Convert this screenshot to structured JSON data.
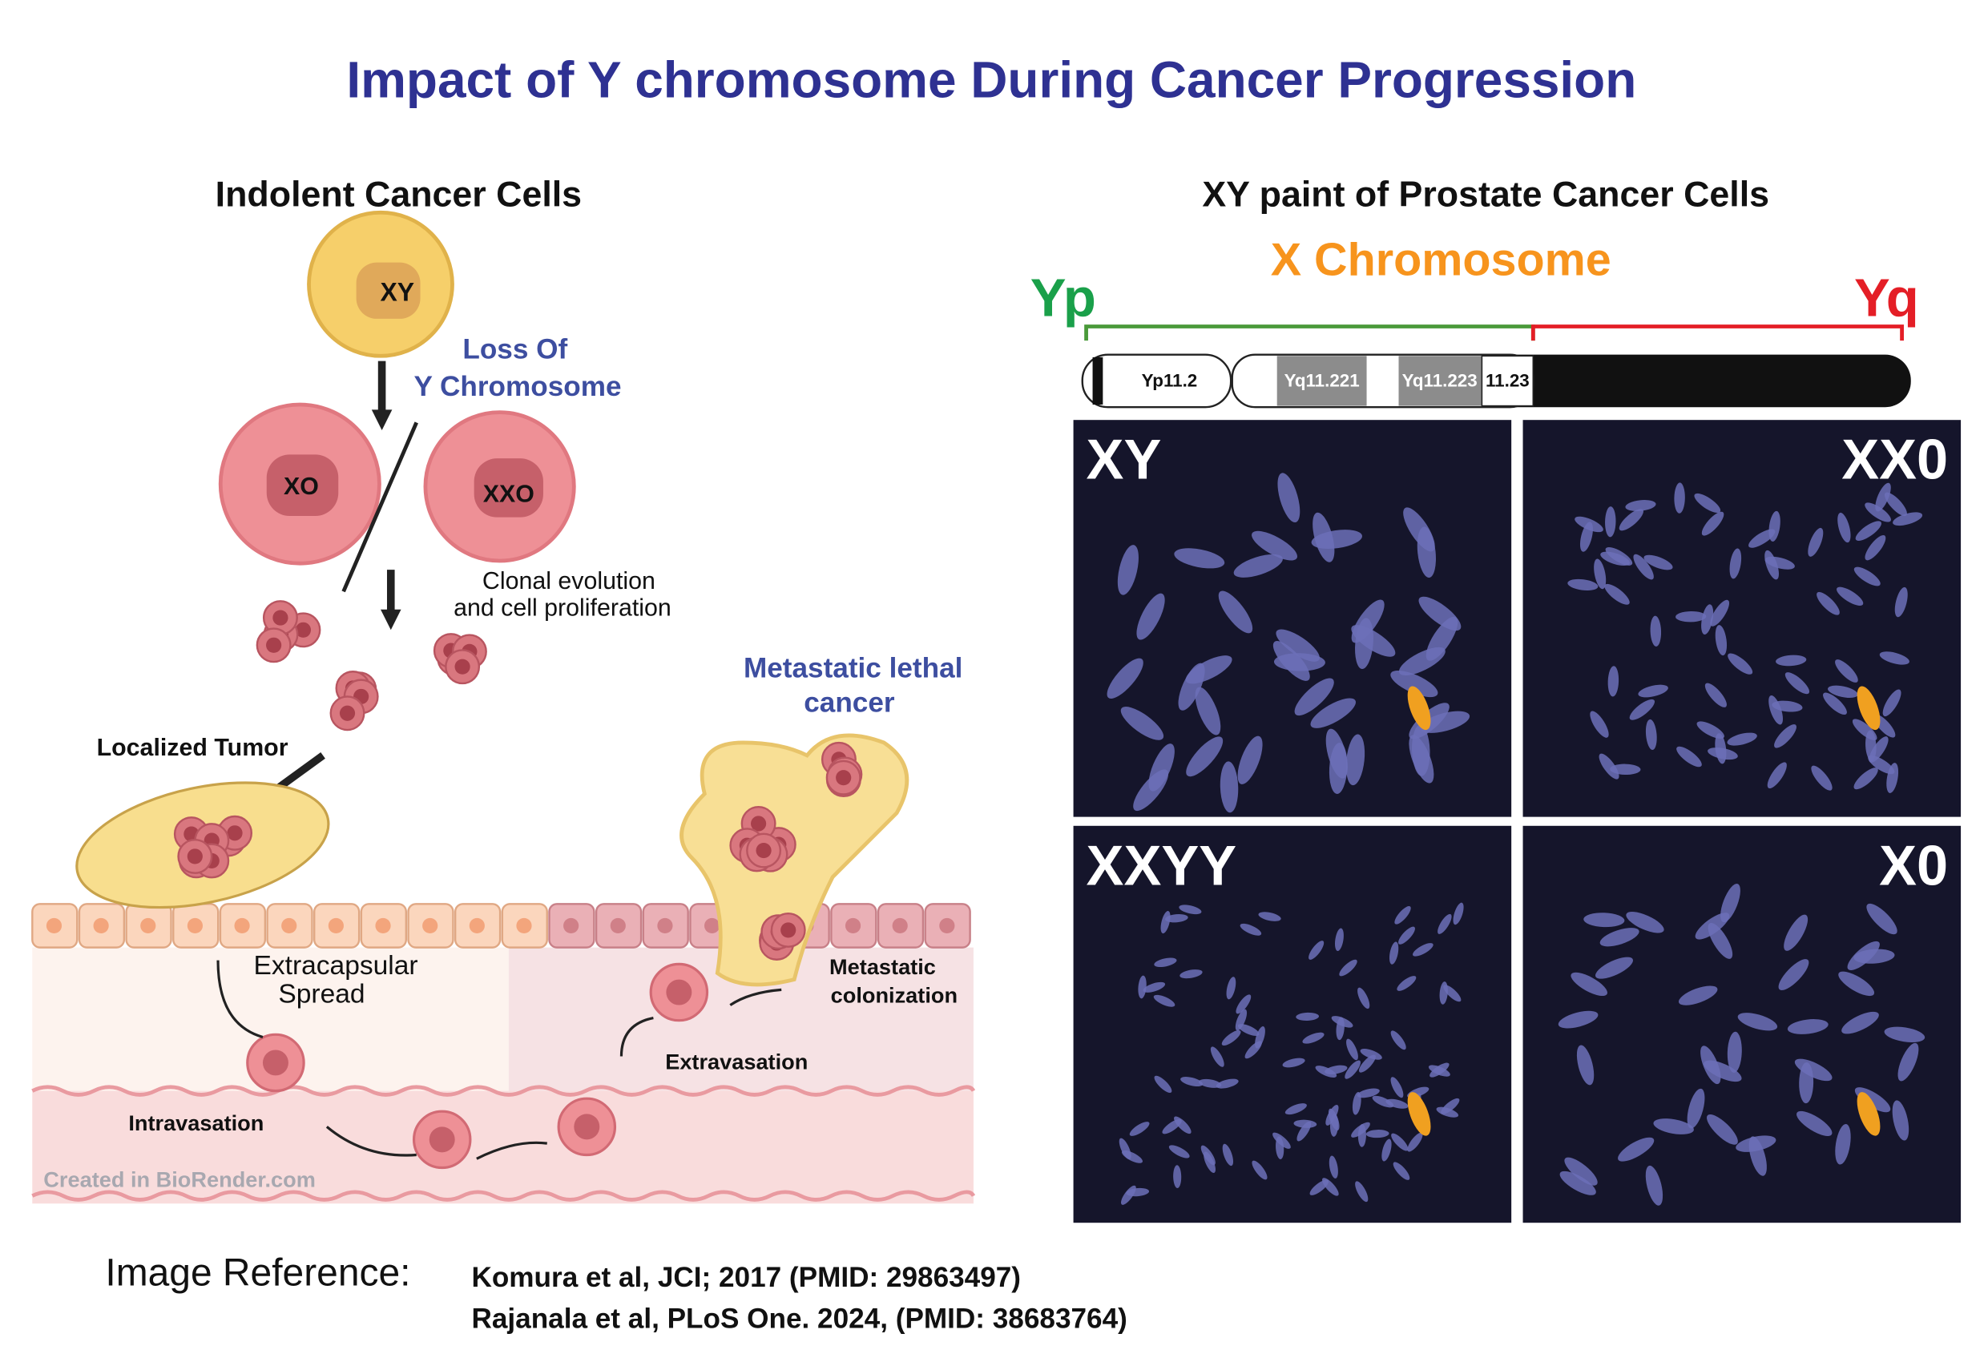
{
  "title": "Impact of Y chromosome During Cancer Progression",
  "left": {
    "heading": "Indolent Cancer Cells",
    "cells": [
      "XY",
      "XO",
      "XXO"
    ],
    "loss_of_y": [
      "Loss Of",
      "Y Chromosome"
    ],
    "clonal": [
      "Clonal evolution",
      "and cell proliferation"
    ],
    "localized_tumor": "Localized Tumor",
    "metastatic_lethal": [
      "Metastatic lethal",
      "cancer"
    ],
    "extracapsular": [
      "Extracapsular",
      "Spread"
    ],
    "metastatic_colonization": [
      "Metastatic",
      "colonization"
    ],
    "extravasation": "Extravasation",
    "intravasation": "Intravasation",
    "credit": "Created in BioRender.com"
  },
  "right": {
    "heading": "XY paint of Prostate Cancer Cells",
    "x_chromosome": "X Chromosome",
    "yp": "Yp",
    "yq": "Yq",
    "bands": [
      "Yp11.2",
      "Yq11.221",
      "Yq11.223",
      "11.23"
    ],
    "panels": [
      "XY",
      "XX0",
      "XXYY",
      "X0"
    ]
  },
  "reference": {
    "label": "Image Reference:",
    "lines": [
      "Komura et al, JCI; 2017 (PMID: 29863497)",
      "Rajanala et al, PLoS One. 2024, (PMID: 38683764)"
    ]
  }
}
